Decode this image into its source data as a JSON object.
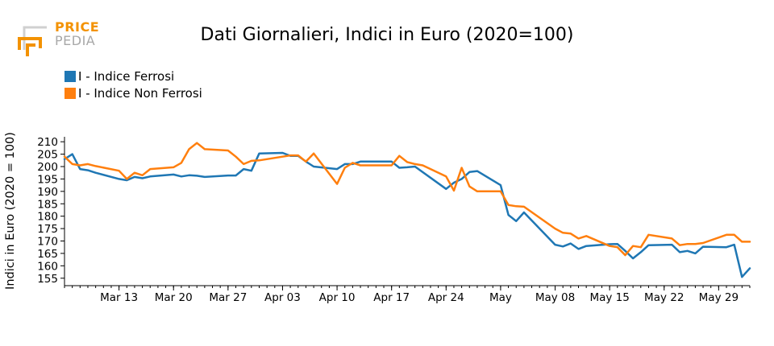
{
  "logo": {
    "word1": "PRICE",
    "word2": "PEDIA",
    "color_primary": "#f39200",
    "color_secondary": "#a8a8a8"
  },
  "chart_data": {
    "type": "line",
    "title": "Dati Giornalieri, Indici in Euro (2020=100)",
    "ylabel": "Indici in Euro (2020 = 100)",
    "xlabel": "",
    "ylim": [
      152,
      212
    ],
    "xlim": [
      "Mar 06",
      "May 31"
    ],
    "yticks": [
      155,
      160,
      165,
      170,
      175,
      180,
      185,
      190,
      195,
      200,
      205,
      210
    ],
    "xticks": [
      {
        "date": "Mar 13",
        "label": "Mar 13"
      },
      {
        "date": "Mar 20",
        "label": "Mar 20"
      },
      {
        "date": "Mar 27",
        "label": "Mar 27"
      },
      {
        "date": "Apr 03",
        "label": "Apr 03"
      },
      {
        "date": "Apr 10",
        "label": "Apr 10"
      },
      {
        "date": "Apr 17",
        "label": "Apr 17"
      },
      {
        "date": "Apr 24",
        "label": "Apr 24"
      },
      {
        "date": "May 01",
        "label": "May"
      },
      {
        "date": "May 08",
        "label": "May 08"
      },
      {
        "date": "May 15",
        "label": "May 15"
      },
      {
        "date": "May 22",
        "label": "May 22"
      },
      {
        "date": "May 29",
        "label": "May 29"
      }
    ],
    "grid": false,
    "legend_position": "top-left",
    "series": [
      {
        "name": "I - Indice Ferrosi",
        "color": "#1f77b4",
        "points": [
          [
            "Mar 06",
            203.0
          ],
          [
            "Mar 07",
            205.0
          ],
          [
            "Mar 08",
            199.0
          ],
          [
            "Mar 09",
            198.5
          ],
          [
            "Mar 10",
            197.5
          ],
          [
            "Mar 13",
            195.0
          ],
          [
            "Mar 14",
            194.5
          ],
          [
            "Mar 15",
            195.8
          ],
          [
            "Mar 16",
            195.3
          ],
          [
            "Mar 17",
            196.0
          ],
          [
            "Mar 20",
            196.8
          ],
          [
            "Mar 21",
            196.0
          ],
          [
            "Mar 22",
            196.5
          ],
          [
            "Mar 23",
            196.3
          ],
          [
            "Mar 24",
            195.8
          ],
          [
            "Mar 27",
            196.4
          ],
          [
            "Mar 28",
            196.4
          ],
          [
            "Mar 29",
            199.0
          ],
          [
            "Mar 30",
            198.3
          ],
          [
            "Mar 31",
            205.3
          ],
          [
            "Apr 03",
            205.5
          ],
          [
            "Apr 04",
            204.3
          ],
          [
            "Apr 05",
            204.3
          ],
          [
            "Apr 06",
            202.0
          ],
          [
            "Apr 07",
            200.0
          ],
          [
            "Apr 10",
            199.0
          ],
          [
            "Apr 11",
            201.0
          ],
          [
            "Apr 12",
            201.0
          ],
          [
            "Apr 13",
            202.0
          ],
          [
            "Apr 14",
            202.0
          ],
          [
            "Apr 17",
            202.0
          ],
          [
            "Apr 18",
            199.5
          ],
          [
            "Apr 19",
            199.7
          ],
          [
            "Apr 20",
            200.0
          ],
          [
            "Apr 24",
            191.0
          ],
          [
            "Apr 25",
            193.5
          ],
          [
            "Apr 26",
            195.0
          ],
          [
            "Apr 27",
            197.8
          ],
          [
            "Apr 28",
            198.2
          ],
          [
            "May 01",
            192.5
          ],
          [
            "May 02",
            180.5
          ],
          [
            "May 03",
            178.0
          ],
          [
            "May 04",
            181.5
          ],
          [
            "May 08",
            168.5
          ],
          [
            "May 09",
            167.8
          ],
          [
            "May 10",
            169.0
          ],
          [
            "May 11",
            166.8
          ],
          [
            "May 12",
            168.0
          ],
          [
            "May 15",
            168.7
          ],
          [
            "May 16",
            168.8
          ],
          [
            "May 17",
            166.0
          ],
          [
            "May 18",
            163.0
          ],
          [
            "May 19",
            165.5
          ],
          [
            "May 20",
            168.3
          ],
          [
            "May 23",
            168.5
          ],
          [
            "May 24",
            165.5
          ],
          [
            "May 25",
            166.0
          ],
          [
            "May 26",
            165.0
          ],
          [
            "May 27",
            167.7
          ],
          [
            "May 30",
            167.5
          ],
          [
            "May 31",
            168.5
          ],
          [
            "Jun 01",
            155.5
          ],
          [
            "Jun 02",
            159.0
          ]
        ]
      },
      {
        "name": "I - Indice Non Ferrosi",
        "color": "#ff7f0e",
        "points": [
          [
            "Mar 06",
            204.0
          ],
          [
            "Mar 07",
            201.0
          ],
          [
            "Mar 08",
            200.5
          ],
          [
            "Mar 09",
            201.0
          ],
          [
            "Mar 10",
            200.2
          ],
          [
            "Mar 13",
            198.3
          ],
          [
            "Mar 14",
            195.0
          ],
          [
            "Mar 15",
            197.5
          ],
          [
            "Mar 16",
            196.5
          ],
          [
            "Mar 17",
            199.0
          ],
          [
            "Mar 20",
            199.7
          ],
          [
            "Mar 21",
            201.5
          ],
          [
            "Mar 22",
            207.0
          ],
          [
            "Mar 23",
            209.5
          ],
          [
            "Mar 24",
            207.0
          ],
          [
            "Mar 27",
            206.5
          ],
          [
            "Mar 28",
            204.0
          ],
          [
            "Mar 29",
            201.0
          ],
          [
            "Mar 30",
            202.3
          ],
          [
            "Mar 31",
            202.5
          ],
          [
            "Apr 03",
            204.0
          ],
          [
            "Apr 04",
            204.5
          ],
          [
            "Apr 05",
            204.5
          ],
          [
            "Apr 06",
            202.0
          ],
          [
            "Apr 07",
            205.3
          ],
          [
            "Apr 10",
            193.0
          ],
          [
            "Apr 11",
            199.5
          ],
          [
            "Apr 12",
            201.5
          ],
          [
            "Apr 13",
            200.5
          ],
          [
            "Apr 14",
            200.5
          ],
          [
            "Apr 17",
            200.5
          ],
          [
            "Apr 18",
            204.3
          ],
          [
            "Apr 19",
            201.8
          ],
          [
            "Apr 20",
            201.0
          ],
          [
            "Apr 21",
            200.5
          ],
          [
            "Apr 24",
            196.0
          ],
          [
            "Apr 25",
            190.3
          ],
          [
            "Apr 26",
            199.5
          ],
          [
            "Apr 27",
            192.0
          ],
          [
            "Apr 28",
            190.0
          ],
          [
            "May 01",
            190.0
          ],
          [
            "May 02",
            184.5
          ],
          [
            "May 03",
            184.0
          ],
          [
            "May 04",
            183.8
          ],
          [
            "May 08",
            175.0
          ],
          [
            "May 09",
            173.3
          ],
          [
            "May 10",
            173.0
          ],
          [
            "May 11",
            171.0
          ],
          [
            "May 12",
            172.0
          ],
          [
            "May 15",
            168.0
          ],
          [
            "May 16",
            167.5
          ],
          [
            "May 17",
            164.3
          ],
          [
            "May 18",
            168.0
          ],
          [
            "May 19",
            167.5
          ],
          [
            "May 20",
            172.5
          ],
          [
            "May 23",
            171.0
          ],
          [
            "May 24",
            168.3
          ],
          [
            "May 25",
            168.8
          ],
          [
            "May 26",
            168.8
          ],
          [
            "May 27",
            169.2
          ],
          [
            "May 30",
            172.5
          ],
          [
            "May 31",
            172.5
          ],
          [
            "Jun 01",
            169.7
          ],
          [
            "Jun 02",
            169.7
          ]
        ]
      }
    ]
  }
}
